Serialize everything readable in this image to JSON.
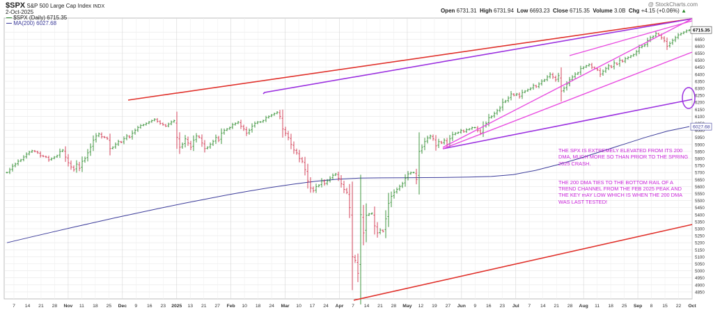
{
  "header": {
    "symbol": "$SPX",
    "name": "S&P 500 Large Cap Index",
    "exchange": "INDX",
    "date": "2-Oct-2025",
    "watermark": "@ StockCharts.com",
    "ohlc": {
      "open_label": "Open",
      "open": "6731.31",
      "high_label": "High",
      "high": "6731.94",
      "low_label": "Low",
      "low": "6693.23",
      "close_label": "Close",
      "close": "6715.35",
      "volume_label": "Volume",
      "volume": "3.0B",
      "chg_label": "Chg",
      "chg": "+4.15 (+0.06%)"
    },
    "legend_price": "$SPX (Daily) 6715.35",
    "legend_ma": "MA(200) 6027.68"
  },
  "annotation": {
    "paragraph1": "THE SPX IS EXTREMELY ELEVATED FROM ITS 200 DMA, MUCH MORE SO THAN PRIOR TO THE SPRING 2025 CRASH.",
    "paragraph2": "THE 200 DMA TIES TO THE BOTTOM RAIL OF A TREND CHANNEL FROM THE FEB 2025 PEAK AND THE KEY mAY LOW WHICH IS WHEN THE 200 DMA WAS LAST TESTED!"
  },
  "colors": {
    "up": "#2a8a2a",
    "down": "#d0304a",
    "ma": "#3b3b9a",
    "red_line": "#e0302a",
    "purple_line": "#9b30e0",
    "magenta_line": "#e84ae0",
    "grid": "#e6e6e6"
  },
  "chart_data": {
    "type": "ohlc-bar",
    "ylim": [
      4800,
      6800
    ],
    "y_ticks": [
      4850,
      4900,
      4950,
      5000,
      5050,
      5100,
      5150,
      5200,
      5250,
      5300,
      5350,
      5400,
      5450,
      5500,
      5550,
      5600,
      5650,
      5700,
      5750,
      5800,
      5850,
      5900,
      5950,
      6000,
      6050,
      6100,
      6150,
      6200,
      6250,
      6300,
      6350,
      6400,
      6450,
      6500,
      6550,
      6600,
      6650,
      6700
    ],
    "x_ticks": [
      "7",
      "14",
      "21",
      "28",
      "Nov",
      "11",
      "18",
      "25",
      "Dec",
      "9",
      "16",
      "23",
      "2025",
      "13",
      "21",
      "27",
      "Feb",
      "10",
      "18",
      "24",
      "Mar",
      "10",
      "17",
      "24",
      "Apr",
      "7",
      "14",
      "21",
      "28",
      "May",
      "12",
      "19",
      "27",
      "Jun",
      "9",
      "16",
      "23",
      "Jul",
      "7",
      "14",
      "21",
      "28",
      "Aug",
      "11",
      "18",
      "25",
      "Sep",
      "8",
      "15",
      "22",
      "Oct"
    ],
    "x_month_labels": [
      "Nov",
      "Dec",
      "2025",
      "Feb",
      "Mar",
      "Apr",
      "May",
      "Jun",
      "Jul",
      "Aug",
      "Sep",
      "Oct"
    ],
    "last_price_label": "6715.35",
    "ma_label": "6027.68",
    "series": [
      {
        "name": "$SPX (Daily)",
        "close": [
          5700,
          5720,
          5745,
          5760,
          5780,
          5790,
          5810,
          5830,
          5845,
          5855,
          5850,
          5840,
          5820,
          5815,
          5810,
          5790,
          5800,
          5810,
          5820,
          5850,
          5860,
          5810,
          5770,
          5740,
          5720,
          5760,
          5730,
          5780,
          5800,
          5840,
          5880,
          5930,
          5960,
          5975,
          5955,
          5950,
          5940,
          5870,
          5880,
          5900,
          5920,
          5915,
          5940,
          5960,
          5950,
          5980,
          6000,
          6020,
          6035,
          6040,
          6050,
          6060,
          6070,
          6080,
          6065,
          6050,
          6040,
          6030,
          6045,
          6060,
          6070,
          5950,
          5880,
          5900,
          5940,
          5910,
          5880,
          5930,
          5960,
          5950,
          5910,
          5870,
          5880,
          5900,
          5920,
          5950,
          5930,
          5980,
          6000,
          6010,
          6020,
          6040,
          6050,
          6060,
          6030,
          6010,
          5980,
          6000,
          6030,
          6050,
          6060,
          6060,
          6070,
          6090,
          6100,
          6110,
          6120,
          6130,
          6100,
          6010,
          5980,
          5950,
          5900,
          5860,
          5840,
          5800,
          5780,
          5720,
          5640,
          5590,
          5570,
          5600,
          5610,
          5640,
          5620,
          5640,
          5660,
          5680,
          5690,
          5660,
          5620,
          5580,
          5560,
          5450,
          5100,
          5074,
          4982,
          5400,
          5270,
          5395,
          5405,
          5410,
          5320,
          5270,
          5290,
          5280,
          5370,
          5480,
          5530,
          5560,
          5580,
          5600,
          5620,
          5660,
          5690,
          5700,
          5700,
          5650,
          5850,
          5880,
          5920,
          5945,
          5960,
          5940,
          5890,
          5920,
          5910,
          5930,
          5900,
          5940,
          5970,
          5980,
          5985,
          6000,
          5990,
          6005,
          6010,
          6020,
          6020,
          6000,
          5980,
          6030,
          6050,
          6090,
          6100,
          6120,
          6140,
          6160,
          6200,
          6210,
          6230,
          6260,
          6250,
          6260,
          6240,
          6270,
          6280,
          6290,
          6300,
          6320,
          6310,
          6330,
          6350,
          6360,
          6380,
          6400,
          6380,
          6360,
          6390,
          6280,
          6300,
          6330,
          6360,
          6380,
          6400,
          6410,
          6440,
          6450,
          6460,
          6470,
          6450,
          6440,
          6430,
          6400,
          6420,
          6440,
          6460,
          6450,
          6480,
          6470,
          6500,
          6490,
          6510,
          6520,
          6530,
          6540,
          6560,
          6590,
          6600,
          6610,
          6640,
          6660,
          6670,
          6690,
          6680,
          6660,
          6640,
          6600,
          6620,
          6640,
          6660,
          6680,
          6690,
          6700,
          6711,
          6715
        ]
      },
      {
        "name": "MA(200)",
        "values": [
          5200,
          5237,
          5274,
          5310,
          5345,
          5380,
          5414,
          5447,
          5479,
          5510,
          5540,
          5568,
          5594,
          5617,
          5637,
          5652,
          5660,
          5662,
          5663,
          5664,
          5665,
          5668,
          5672,
          5685,
          5715,
          5755,
          5800,
          5850,
          5900,
          5950,
          5995,
          6027
        ]
      }
    ]
  }
}
